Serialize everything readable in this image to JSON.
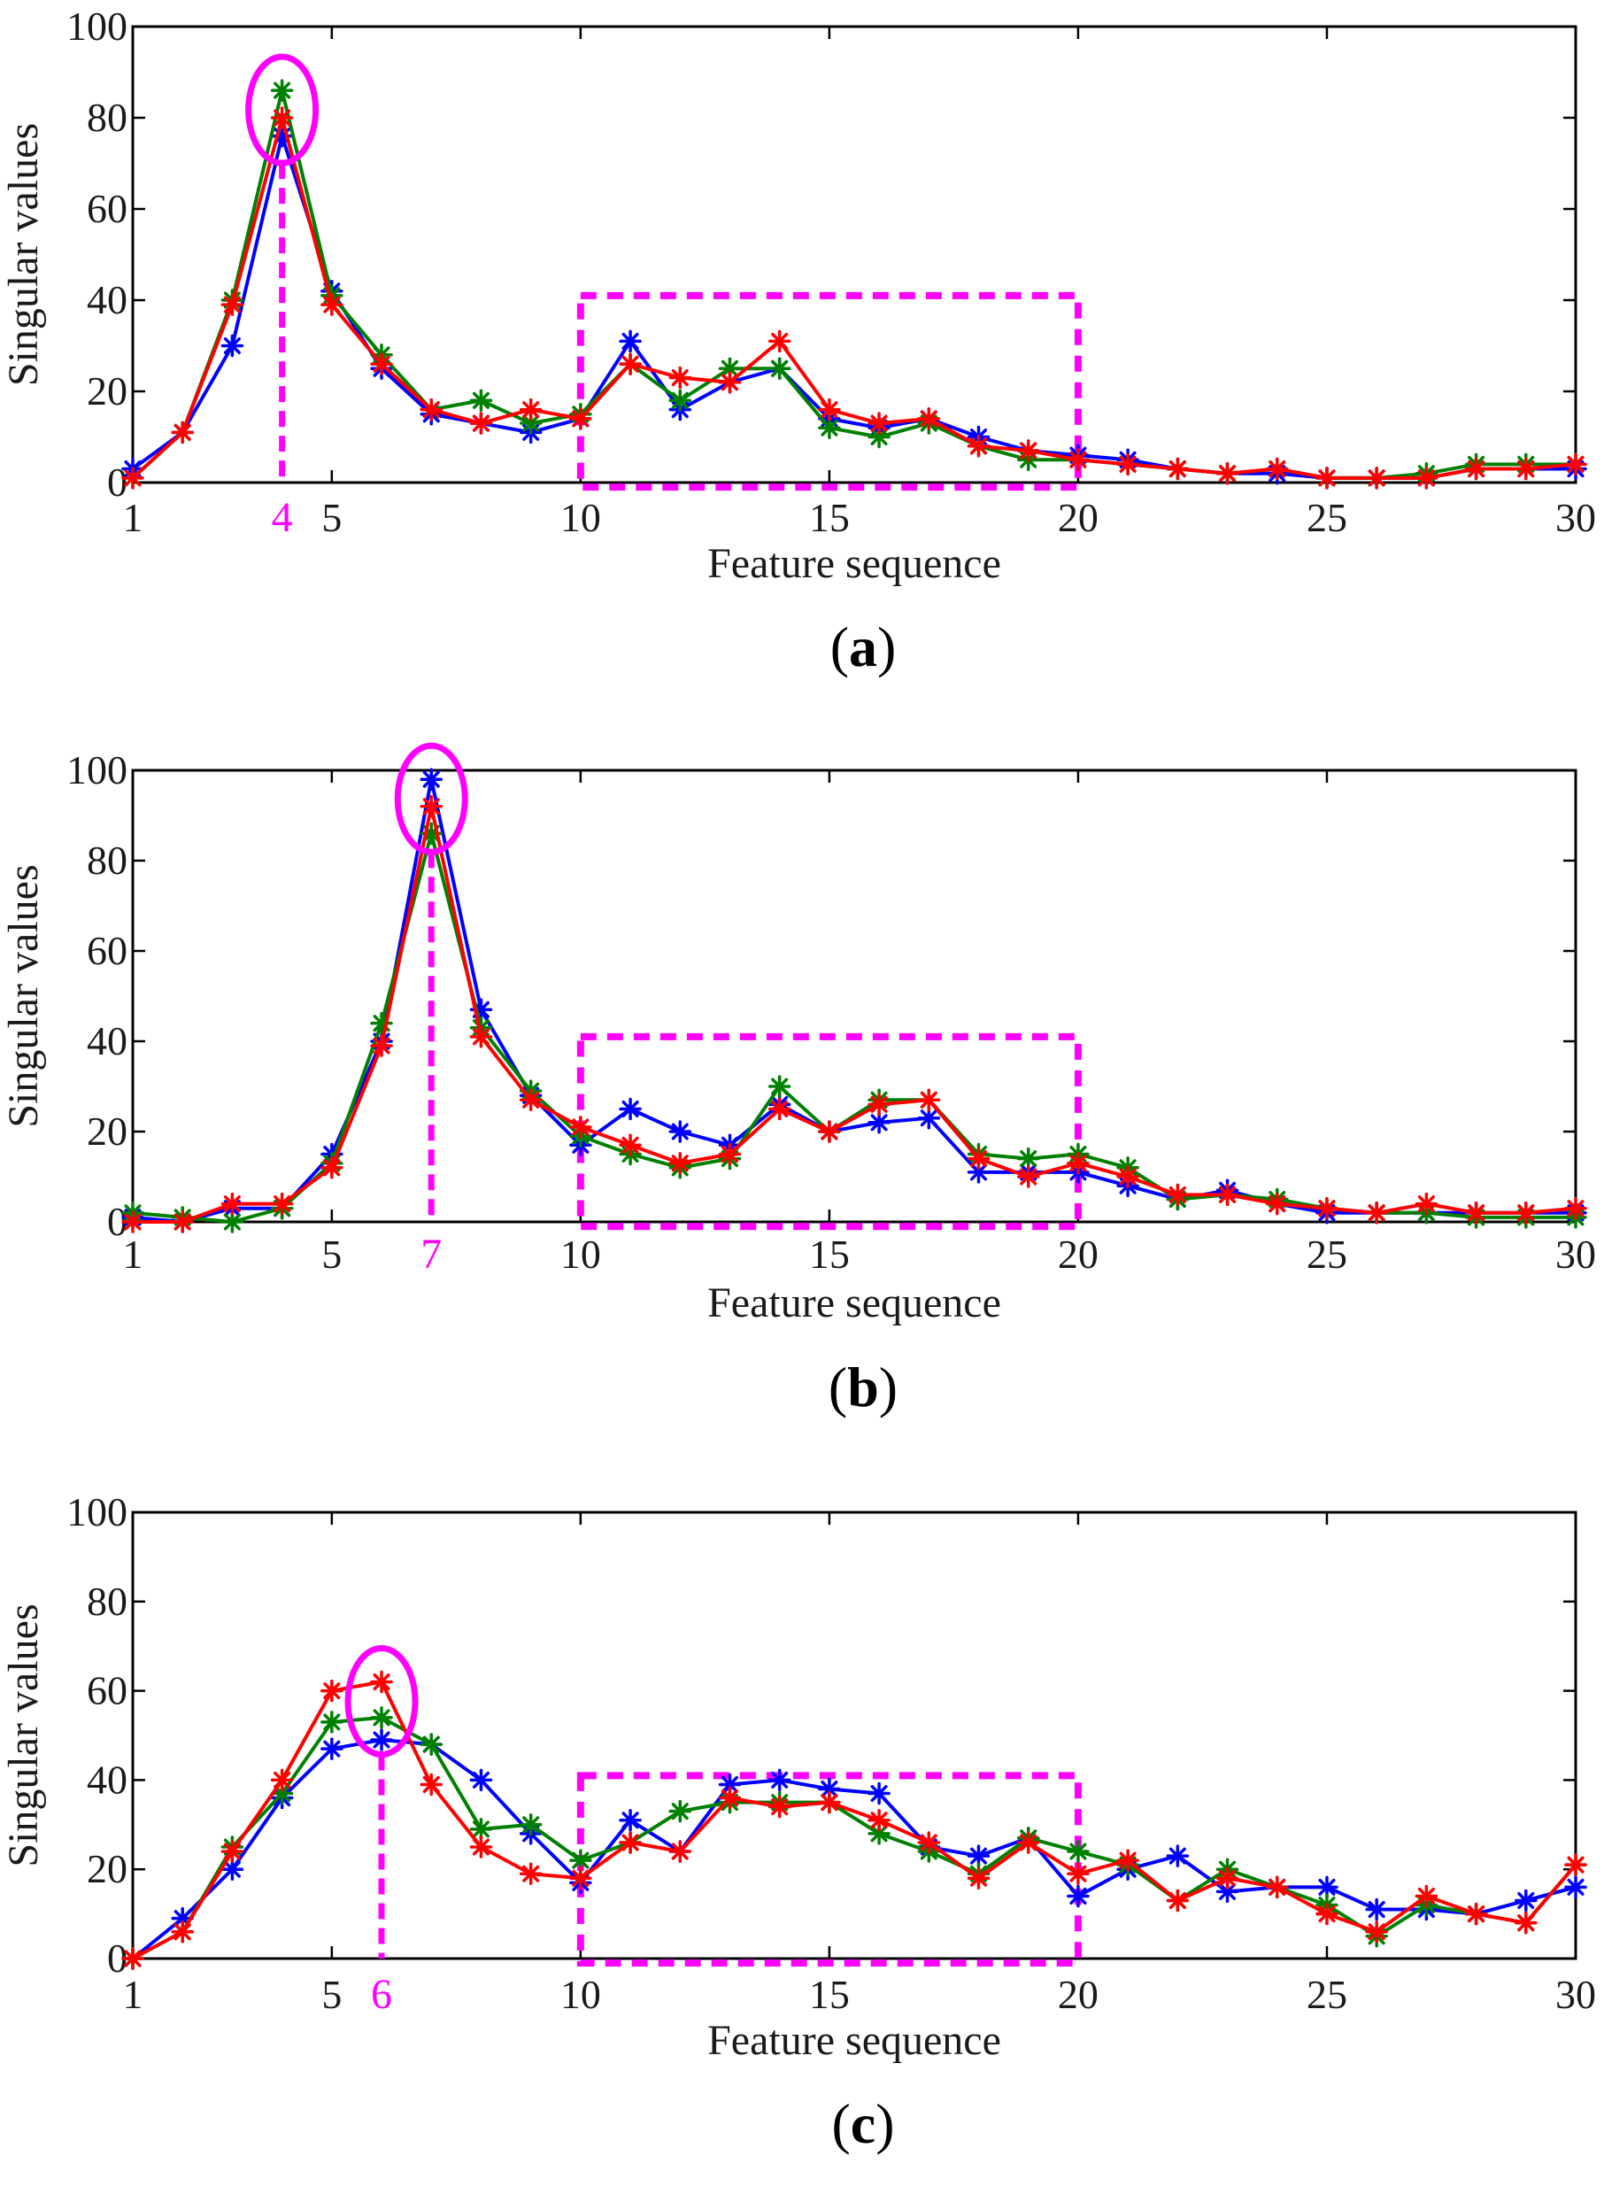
{
  "colors": {
    "blue": "#0000ff",
    "green": "#008000",
    "red": "#ff0000",
    "highlight": "#ff00ff",
    "axis": "#000000"
  },
  "chart_data": [
    {
      "type": "line",
      "panel": "a",
      "panel_label": {
        "open": "(",
        "letter": "a",
        "close": ")"
      },
      "xlabel": "Feature sequence",
      "ylabel": "Singular values",
      "xlim": [
        1,
        30
      ],
      "ylim": [
        0,
        100
      ],
      "xticks": [
        1,
        5,
        10,
        15,
        20,
        25,
        30
      ],
      "yticks": [
        0,
        20,
        40,
        60,
        80,
        100
      ],
      "highlight_x": 4,
      "highlight_label": "4",
      "highlight_range": [
        10,
        20
      ],
      "x": [
        1,
        2,
        3,
        4,
        5,
        6,
        7,
        8,
        9,
        10,
        11,
        12,
        13,
        14,
        15,
        16,
        17,
        18,
        19,
        20,
        21,
        22,
        23,
        24,
        25,
        26,
        27,
        28,
        29,
        30
      ],
      "series": [
        {
          "name": "blue",
          "color": "#0000ff",
          "values": [
            3,
            11,
            30,
            76,
            42,
            25,
            15,
            13,
            11,
            14,
            31,
            16,
            22,
            25,
            14,
            12,
            14,
            10,
            7,
            6,
            5,
            3,
            2,
            2,
            1,
            1,
            1,
            3,
            3,
            3
          ]
        },
        {
          "name": "green",
          "color": "#008000",
          "values": [
            1,
            11,
            40,
            86,
            41,
            28,
            16,
            18,
            13,
            15,
            26,
            18,
            25,
            25,
            12,
            10,
            13,
            8,
            5,
            5,
            4,
            3,
            2,
            3,
            1,
            1,
            2,
            4,
            4,
            4
          ]
        },
        {
          "name": "red",
          "color": "#ff0000",
          "values": [
            1,
            11,
            39,
            80,
            39,
            26,
            16,
            13,
            16,
            14,
            26,
            23,
            22,
            31,
            16,
            13,
            14,
            8,
            7,
            5,
            4,
            3,
            2,
            3,
            1,
            1,
            1,
            3,
            3,
            4
          ]
        }
      ]
    },
    {
      "type": "line",
      "panel": "b",
      "panel_label": {
        "open": "(",
        "letter": "b",
        "close": ")"
      },
      "xlabel": "Feature sequence",
      "ylabel": "Singular values",
      "xlim": [
        1,
        30
      ],
      "ylim": [
        0,
        100
      ],
      "xticks": [
        1,
        5,
        10,
        15,
        20,
        25,
        30
      ],
      "yticks": [
        0,
        20,
        40,
        60,
        80,
        100
      ],
      "highlight_x": 7,
      "highlight_label": "7",
      "highlight_range": [
        10,
        20
      ],
      "x": [
        1,
        2,
        3,
        4,
        5,
        6,
        7,
        8,
        9,
        10,
        11,
        12,
        13,
        14,
        15,
        16,
        17,
        18,
        19,
        20,
        21,
        22,
        23,
        24,
        25,
        26,
        27,
        28,
        29,
        30
      ],
      "series": [
        {
          "name": "blue",
          "color": "#0000ff",
          "values": [
            1,
            0,
            3,
            3,
            15,
            40,
            98,
            47,
            28,
            17,
            25,
            20,
            17,
            26,
            20,
            22,
            23,
            11,
            11,
            11,
            8,
            5,
            7,
            4,
            2,
            2,
            2,
            2,
            2,
            2
          ]
        },
        {
          "name": "green",
          "color": "#008000",
          "values": [
            2,
            1,
            0,
            3,
            13,
            44,
            86,
            43,
            29,
            19,
            15,
            12,
            14,
            30,
            20,
            27,
            27,
            15,
            14,
            15,
            12,
            5,
            6,
            5,
            3,
            2,
            2,
            1,
            1,
            1
          ]
        },
        {
          "name": "red",
          "color": "#ff0000",
          "values": [
            0,
            0,
            4,
            4,
            12,
            39,
            92,
            41,
            27,
            21,
            17,
            13,
            15,
            25,
            20,
            26,
            27,
            14,
            10,
            13,
            10,
            6,
            6,
            4,
            3,
            2,
            4,
            2,
            2,
            3
          ]
        }
      ]
    },
    {
      "type": "line",
      "panel": "c",
      "panel_label": {
        "open": "(",
        "letter": "c",
        "close": ")"
      },
      "xlabel": "Feature sequence",
      "ylabel": "Singular values",
      "xlim": [
        1,
        30
      ],
      "ylim": [
        0,
        100
      ],
      "xticks": [
        1,
        5,
        10,
        15,
        20,
        25,
        30
      ],
      "yticks": [
        0,
        20,
        40,
        60,
        80,
        100
      ],
      "highlight_x": 6,
      "highlight_label": "6",
      "highlight_range": [
        10,
        20
      ],
      "x": [
        1,
        2,
        3,
        4,
        5,
        6,
        7,
        8,
        9,
        10,
        11,
        12,
        13,
        14,
        15,
        16,
        17,
        18,
        19,
        20,
        21,
        22,
        23,
        24,
        25,
        26,
        27,
        28,
        29,
        30
      ],
      "series": [
        {
          "name": "blue",
          "color": "#0000ff",
          "values": [
            0,
            9,
            20,
            36,
            47,
            49,
            48,
            40,
            28,
            17,
            31,
            24,
            39,
            40,
            38,
            37,
            25,
            23,
            27,
            14,
            20,
            23,
            15,
            16,
            16,
            11,
            11,
            10,
            13,
            16
          ]
        },
        {
          "name": "green",
          "color": "#008000",
          "values": [
            0,
            6,
            25,
            37,
            53,
            54,
            48,
            29,
            30,
            22,
            26,
            33,
            35,
            35,
            35,
            28,
            24,
            19,
            27,
            24,
            21,
            13,
            20,
            16,
            12,
            5,
            12,
            10,
            8,
            21
          ]
        },
        {
          "name": "red",
          "color": "#ff0000",
          "values": [
            0,
            6,
            24,
            40,
            60,
            62,
            39,
            25,
            19,
            18,
            26,
            24,
            36,
            34,
            35,
            31,
            26,
            18,
            26,
            19,
            22,
            13,
            18,
            16,
            10,
            6,
            14,
            10,
            8,
            21
          ]
        }
      ]
    }
  ]
}
